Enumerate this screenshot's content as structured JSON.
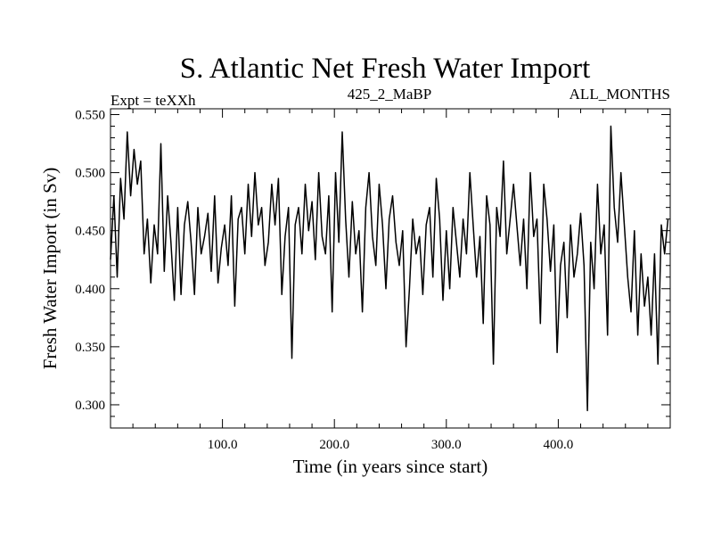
{
  "chart_data": {
    "type": "line",
    "title": "S. Atlantic Net Fresh Water Import",
    "subtitle_left": "Expt = teXXh",
    "subtitle_center": "425_2_MaBP",
    "subtitle_right": "ALL_MONTHS",
    "xlabel": "Time (in years since start)",
    "ylabel": "Fresh Water Import (in Sv)",
    "xlim": [
      0,
      500
    ],
    "ylim": [
      0.28,
      0.555
    ],
    "xticks": [
      {
        "value": 100,
        "label": "100.0"
      },
      {
        "value": 200,
        "label": "200.0"
      },
      {
        "value": 300,
        "label": "300.0"
      },
      {
        "value": 400,
        "label": "400.0"
      }
    ],
    "yticks": [
      {
        "value": 0.3,
        "label": "0.300"
      },
      {
        "value": 0.35,
        "label": "0.350"
      },
      {
        "value": 0.4,
        "label": "0.400"
      },
      {
        "value": 0.45,
        "label": "0.450"
      },
      {
        "value": 0.5,
        "label": "0.500"
      },
      {
        "value": 0.55,
        "label": "0.550"
      }
    ],
    "series": [
      {
        "name": "Fresh Water Import",
        "x": [
          0,
          3,
          6,
          9,
          12,
          15,
          18,
          21,
          24,
          27,
          30,
          33,
          36,
          39,
          42,
          45,
          48,
          51,
          54,
          57,
          60,
          63,
          66,
          69,
          72,
          75,
          78,
          81,
          84,
          87,
          90,
          93,
          96,
          99,
          102,
          105,
          108,
          111,
          114,
          117,
          120,
          123,
          126,
          129,
          132,
          135,
          138,
          141,
          144,
          147,
          150,
          153,
          156,
          159,
          162,
          165,
          168,
          171,
          174,
          177,
          180,
          183,
          186,
          189,
          192,
          195,
          198,
          201,
          204,
          207,
          210,
          213,
          216,
          219,
          222,
          225,
          228,
          231,
          234,
          237,
          240,
          243,
          246,
          249,
          252,
          255,
          258,
          261,
          264,
          267,
          270,
          273,
          276,
          279,
          282,
          285,
          288,
          291,
          294,
          297,
          300,
          303,
          306,
          309,
          312,
          315,
          318,
          321,
          324,
          327,
          330,
          333,
          336,
          339,
          342,
          345,
          348,
          351,
          354,
          357,
          360,
          363,
          366,
          369,
          372,
          375,
          378,
          381,
          384,
          387,
          390,
          393,
          396,
          399,
          402,
          405,
          408,
          411,
          414,
          417,
          420,
          423,
          426,
          429,
          432,
          435,
          438,
          441,
          444,
          447,
          450,
          453,
          456,
          459,
          462,
          465,
          468,
          471,
          474,
          477,
          480,
          483,
          486,
          489,
          492,
          495,
          498
        ],
        "values": [
          0.425,
          0.48,
          0.41,
          0.495,
          0.46,
          0.535,
          0.48,
          0.52,
          0.49,
          0.51,
          0.43,
          0.46,
          0.405,
          0.455,
          0.43,
          0.525,
          0.415,
          0.48,
          0.44,
          0.39,
          0.47,
          0.395,
          0.455,
          0.475,
          0.44,
          0.395,
          0.47,
          0.43,
          0.445,
          0.465,
          0.415,
          0.48,
          0.405,
          0.435,
          0.455,
          0.42,
          0.48,
          0.385,
          0.46,
          0.47,
          0.43,
          0.49,
          0.445,
          0.5,
          0.455,
          0.47,
          0.42,
          0.44,
          0.49,
          0.455,
          0.495,
          0.395,
          0.445,
          0.47,
          0.34,
          0.455,
          0.47,
          0.43,
          0.49,
          0.45,
          0.475,
          0.425,
          0.5,
          0.445,
          0.43,
          0.48,
          0.38,
          0.5,
          0.44,
          0.535,
          0.46,
          0.41,
          0.475,
          0.43,
          0.45,
          0.38,
          0.47,
          0.5,
          0.445,
          0.42,
          0.49,
          0.455,
          0.4,
          0.46,
          0.48,
          0.44,
          0.42,
          0.45,
          0.35,
          0.4,
          0.46,
          0.43,
          0.445,
          0.395,
          0.455,
          0.47,
          0.41,
          0.495,
          0.46,
          0.39,
          0.45,
          0.4,
          0.47,
          0.44,
          0.41,
          0.46,
          0.43,
          0.5,
          0.455,
          0.41,
          0.445,
          0.37,
          0.48,
          0.455,
          0.335,
          0.47,
          0.445,
          0.51,
          0.43,
          0.46,
          0.49,
          0.455,
          0.42,
          0.46,
          0.4,
          0.5,
          0.445,
          0.46,
          0.37,
          0.49,
          0.46,
          0.415,
          0.455,
          0.345,
          0.42,
          0.44,
          0.375,
          0.455,
          0.41,
          0.43,
          0.465,
          0.42,
          0.295,
          0.44,
          0.4,
          0.49,
          0.43,
          0.455,
          0.36,
          0.54,
          0.47,
          0.44,
          0.5,
          0.455,
          0.41,
          0.38,
          0.45,
          0.36,
          0.43,
          0.385,
          0.41,
          0.36,
          0.43,
          0.335,
          0.455,
          0.43,
          0.46
        ]
      }
    ]
  }
}
